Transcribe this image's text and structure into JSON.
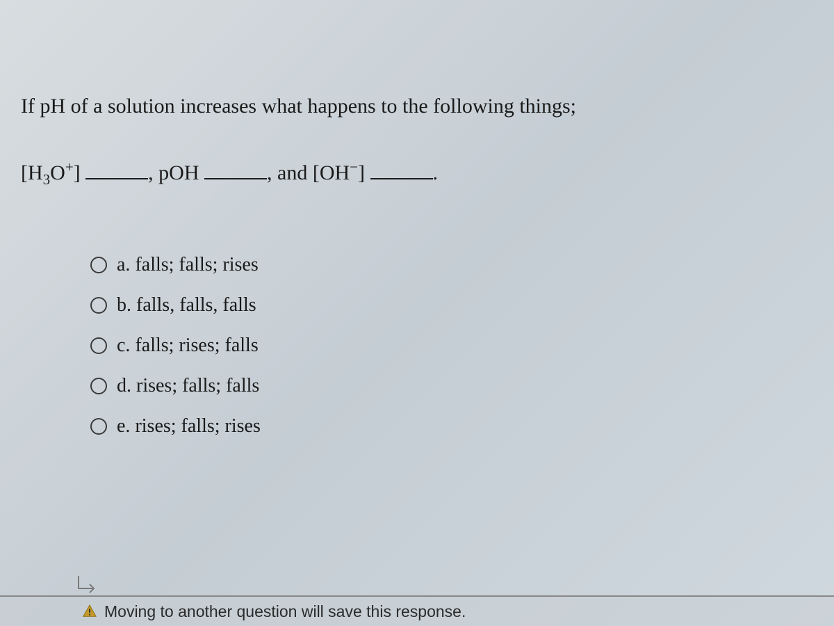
{
  "question": {
    "prompt": "If pH of a solution increases what happens to the following things;",
    "blanks_html": "[H<span class='sub'>3</span>O<span class='sup'>+</span>] <span class='blank'></span>, pOH <span class='blank'></span>, and [OH<span class='sup'>−</span>] <span class='blank'></span>."
  },
  "options": [
    {
      "letter": "a.",
      "text": "falls; falls; rises"
    },
    {
      "letter": "b.",
      "text": "falls, falls, falls"
    },
    {
      "letter": "c.",
      "text": "falls; rises; falls"
    },
    {
      "letter": "d.",
      "text": "rises; falls; falls"
    },
    {
      "letter": "e.",
      "text": "rises; falls; rises"
    }
  ],
  "footer": {
    "message": "Moving to another question will save this response."
  },
  "colors": {
    "text": "#1a1a1a",
    "radio_border": "#3a3a3a",
    "warning_fill": "#b8860b",
    "arrow": "#7a7a7a"
  }
}
